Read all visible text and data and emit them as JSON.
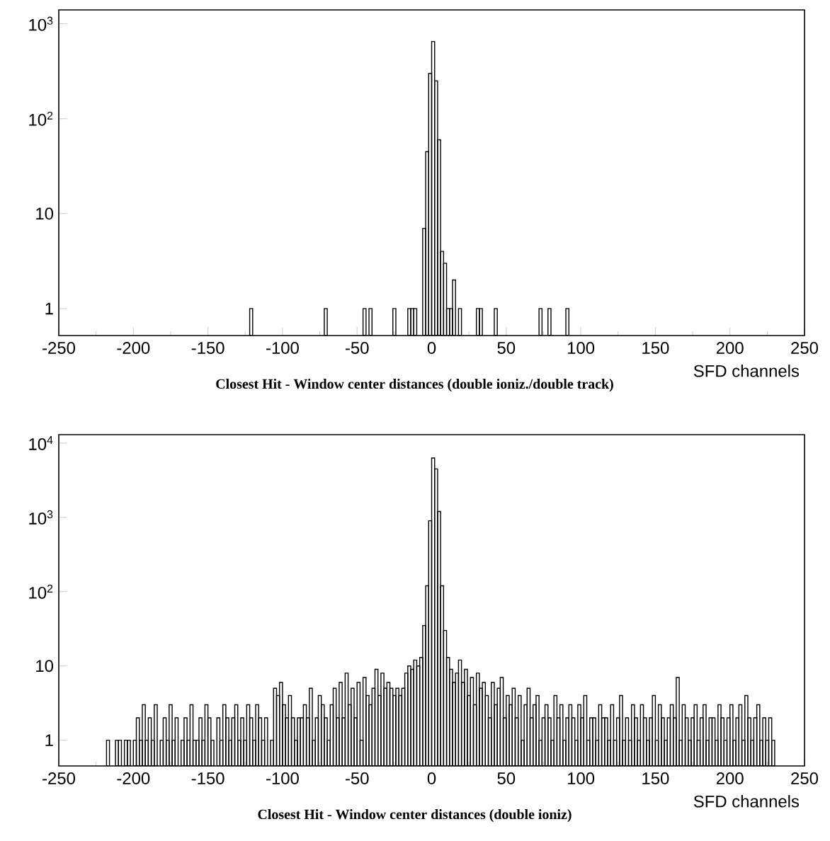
{
  "chart_data": [
    {
      "type": "histogram",
      "title": "Closest Hit - Window center distances (double ioniz./double track)",
      "xlabel": "SFD channels",
      "log": "y",
      "bins": [
        -122,
        -120,
        -72,
        -70,
        -46,
        -44,
        -42,
        -40,
        -26,
        -24,
        -16,
        -14,
        -12,
        -10,
        -6,
        -4,
        -2,
        0,
        2,
        4,
        6,
        8,
        10,
        12,
        14,
        16,
        18,
        20,
        30,
        32,
        34,
        42,
        44,
        72,
        74,
        78,
        80,
        90,
        92
      ],
      "values": [
        1,
        null,
        1,
        null,
        1,
        null,
        1,
        null,
        1,
        null,
        1,
        1,
        1,
        null,
        7,
        45,
        300,
        650,
        250,
        60,
        4,
        3,
        1,
        1,
        2,
        null,
        1,
        null,
        1,
        1,
        null,
        1,
        null,
        1,
        null,
        1,
        null,
        1
      ],
      "xlim": [
        -250,
        250
      ],
      "ylim": [
        0.52,
        1400
      ],
      "xticks": [
        -250,
        -200,
        -150,
        -100,
        -50,
        0,
        50,
        100,
        150,
        200,
        250
      ],
      "yticks": [
        1,
        10,
        {
          "value": 100,
          "label": "10$^{2}$"
        },
        {
          "value": 1000,
          "label": "10$^{3}$"
        }
      ]
    },
    {
      "type": "histogram",
      "title": "Closest Hit - Window center distances (double ioniz)",
      "xlabel": "SFD channels",
      "log": "y",
      "bins": [
        -218,
        -216,
        -214,
        -212,
        -210,
        -208,
        -206,
        -204,
        -202,
        -200,
        -198,
        -196,
        -194,
        -192,
        -190,
        -188,
        -186,
        -184,
        -182,
        -180,
        -178,
        -176,
        -174,
        -172,
        -170,
        -168,
        -166,
        -164,
        -162,
        -160,
        -158,
        -156,
        -154,
        -152,
        -150,
        -148,
        -146,
        -144,
        -142,
        -140,
        -138,
        -136,
        -134,
        -132,
        -130,
        -128,
        -126,
        -124,
        -122,
        -120,
        -118,
        -116,
        -114,
        -112,
        -110,
        -108,
        -106,
        -104,
        -102,
        -100,
        -98,
        -96,
        -94,
        -92,
        -90,
        -88,
        -86,
        -84,
        -82,
        -80,
        -78,
        -76,
        -74,
        -72,
        -70,
        -68,
        -66,
        -64,
        -62,
        -60,
        -58,
        -56,
        -54,
        -52,
        -50,
        -48,
        -46,
        -44,
        -42,
        -40,
        -38,
        -36,
        -34,
        -32,
        -30,
        -28,
        -26,
        -24,
        -22,
        -20,
        -18,
        -16,
        -14,
        -12,
        -10,
        -8,
        -6,
        -4,
        -2,
        0,
        2,
        4,
        6,
        8,
        10,
        12,
        14,
        16,
        18,
        20,
        22,
        24,
        26,
        28,
        30,
        32,
        34,
        36,
        38,
        40,
        42,
        44,
        46,
        48,
        50,
        52,
        54,
        56,
        58,
        60,
        62,
        64,
        66,
        68,
        70,
        72,
        74,
        76,
        78,
        80,
        82,
        84,
        86,
        88,
        90,
        92,
        94,
        96,
        98,
        100,
        102,
        104,
        106,
        108,
        110,
        112,
        114,
        116,
        118,
        120,
        122,
        124,
        126,
        128,
        130,
        132,
        134,
        136,
        138,
        140,
        142,
        144,
        146,
        148,
        150,
        152,
        154,
        156,
        158,
        160,
        162,
        164,
        166,
        168,
        170,
        172,
        174,
        176,
        178,
        180,
        182,
        184,
        186,
        188,
        190,
        192,
        194,
        196,
        198,
        200,
        202,
        204,
        206,
        208,
        210,
        212,
        214,
        216,
        218,
        220,
        222,
        224,
        226,
        228,
        230
      ],
      "values": [
        1,
        null,
        null,
        1,
        1,
        null,
        1,
        1,
        null,
        1,
        2,
        1,
        3,
        1,
        2,
        1,
        3,
        null,
        1,
        2,
        1,
        3,
        1,
        2,
        null,
        1,
        2,
        1,
        3,
        1,
        1,
        2,
        1,
        3,
        2,
        1,
        null,
        2,
        1,
        3,
        2,
        1,
        2,
        3,
        1,
        2,
        1,
        3,
        2,
        1,
        3,
        2,
        1,
        2,
        null,
        1,
        5,
        4,
        6,
        3,
        2,
        4,
        2,
        1,
        2,
        2,
        3,
        2,
        5,
        1,
        2,
        4,
        3,
        2,
        1,
        3,
        5,
        2,
        6,
        2,
        8,
        3,
        5,
        2,
        6,
        1,
        7,
        4,
        3,
        5,
        9,
        4,
        8,
        5,
        6,
        5,
        4,
        5,
        4,
        5,
        8,
        10,
        9,
        12,
        10,
        13,
        35,
        120,
        900,
        6300,
        4500,
        1200,
        120,
        30,
        13,
        9,
        6,
        8,
        12,
        6,
        9,
        4,
        7,
        3,
        8,
        5,
        6,
        4,
        2,
        6,
        3,
        5,
        7,
        2,
        4,
        3,
        5,
        2,
        4,
        1,
        3,
        5,
        2,
        3,
        4,
        1,
        2,
        3,
        2,
        1,
        4,
        2,
        3,
        1,
        2,
        3,
        2,
        1,
        3,
        2,
        4,
        1,
        2,
        2,
        1,
        3,
        2,
        2,
        1,
        3,
        1,
        2,
        4,
        1,
        2,
        1,
        3,
        2,
        1,
        3,
        2,
        1,
        2,
        4,
        1,
        3,
        2,
        1,
        2,
        3,
        2,
        7,
        1,
        3,
        2,
        1,
        2,
        3,
        1,
        2,
        3,
        1,
        2,
        2,
        1,
        3,
        2,
        1,
        2,
        3,
        1,
        2,
        3,
        1,
        4,
        2,
        1,
        2,
        3,
        1,
        2,
        1,
        2,
        1
      ],
      "xlim": [
        -250,
        250
      ],
      "ylim": [
        0.45,
        13000
      ],
      "xticks": [
        -250,
        -200,
        -150,
        -100,
        -50,
        0,
        50,
        100,
        150,
        200,
        250
      ],
      "yticks": [
        1,
        10,
        {
          "value": 100,
          "label": "10$^{2}$"
        },
        {
          "value": 1000,
          "label": "10$^{3}$"
        },
        {
          "value": 10000,
          "label": "10$^{4}$"
        }
      ]
    }
  ]
}
